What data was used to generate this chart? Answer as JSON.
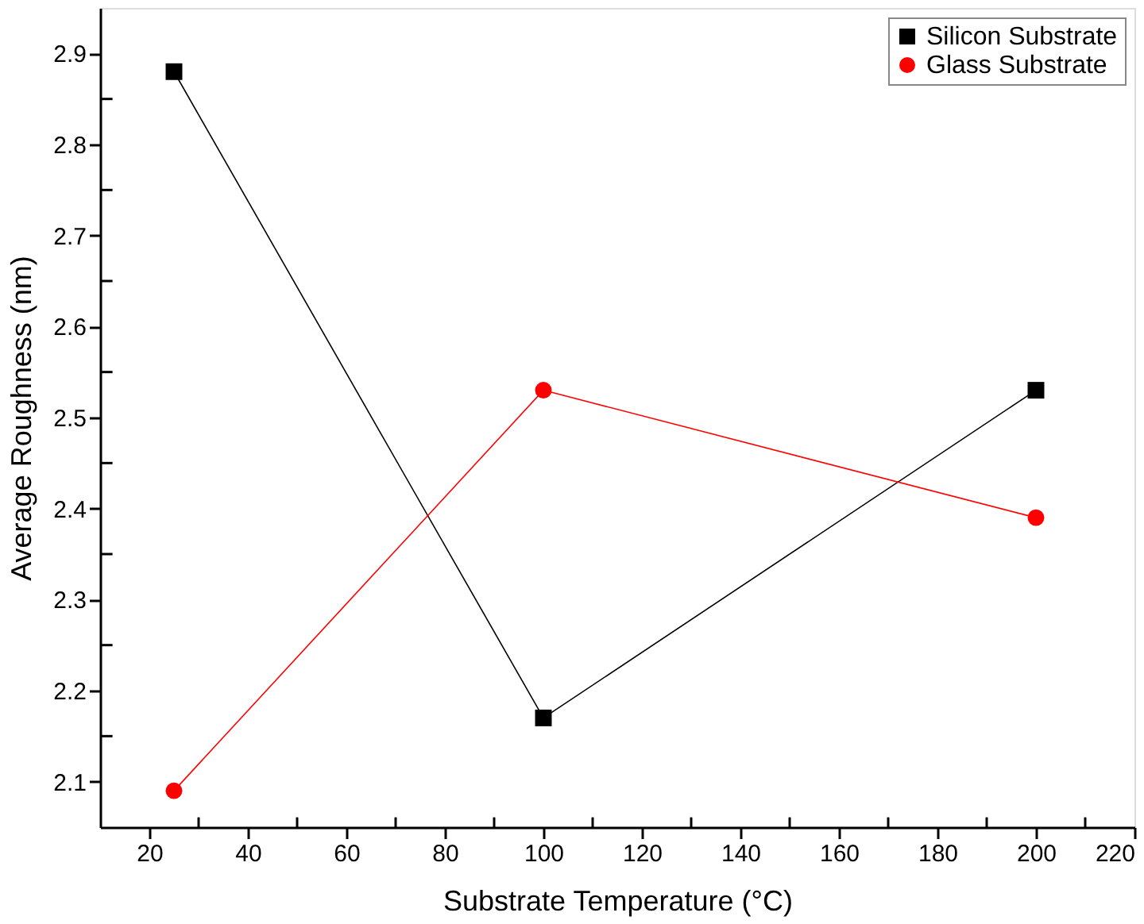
{
  "chart_data": {
    "type": "line",
    "xlabel": "Substrate Temperature (°C)",
    "ylabel": "Average Roughness (nm)",
    "x": [
      25,
      100,
      200
    ],
    "series": [
      {
        "name": "Silicon Substrate",
        "color": "#000000",
        "marker": "square",
        "values": [
          2.88,
          2.17,
          2.53
        ]
      },
      {
        "name": "Glass Substrate",
        "color": "#ff0000",
        "marker": "circle",
        "values": [
          2.09,
          2.53,
          2.39
        ]
      }
    ],
    "xlim": [
      10,
      220
    ],
    "ylim": [
      2.05,
      2.95
    ],
    "xticks": [
      20,
      {
        "value": 30,
        "label": null
      },
      40,
      {
        "value": 50,
        "label": null
      },
      60,
      {
        "value": 70,
        "label": null
      },
      80,
      {
        "value": 90,
        "label": null
      },
      100,
      {
        "value": 110,
        "label": null
      },
      120,
      {
        "value": 130,
        "label": null
      },
      140,
      {
        "value": 150,
        "label": null
      },
      160,
      {
        "value": 170,
        "label": null
      },
      180,
      {
        "value": 190,
        "label": null
      },
      200,
      {
        "value": 210,
        "label": null
      },
      220
    ],
    "yticks": [
      {
        "value": 2.1,
        "label": "2.1"
      },
      {
        "value": 2.15,
        "label": null
      },
      {
        "value": 2.2,
        "label": "2.2"
      },
      {
        "value": 2.25,
        "label": null
      },
      {
        "value": 2.3,
        "label": "2.3"
      },
      {
        "value": 2.35,
        "label": null
      },
      {
        "value": 2.4,
        "label": "2.4"
      },
      {
        "value": 2.45,
        "label": null
      },
      {
        "value": 2.5,
        "label": "2.5"
      },
      {
        "value": 2.55,
        "label": null
      },
      {
        "value": 2.6,
        "label": "2.6"
      },
      {
        "value": 2.65,
        "label": null
      },
      {
        "value": 2.7,
        "label": "2.7"
      },
      {
        "value": 2.75,
        "label": null
      },
      {
        "value": 2.8,
        "label": "2.8"
      },
      {
        "value": 2.85,
        "label": null
      },
      {
        "value": 2.9,
        "label": "2.9"
      }
    ],
    "grid": false,
    "legend": "top right",
    "line_style": "solid"
  }
}
